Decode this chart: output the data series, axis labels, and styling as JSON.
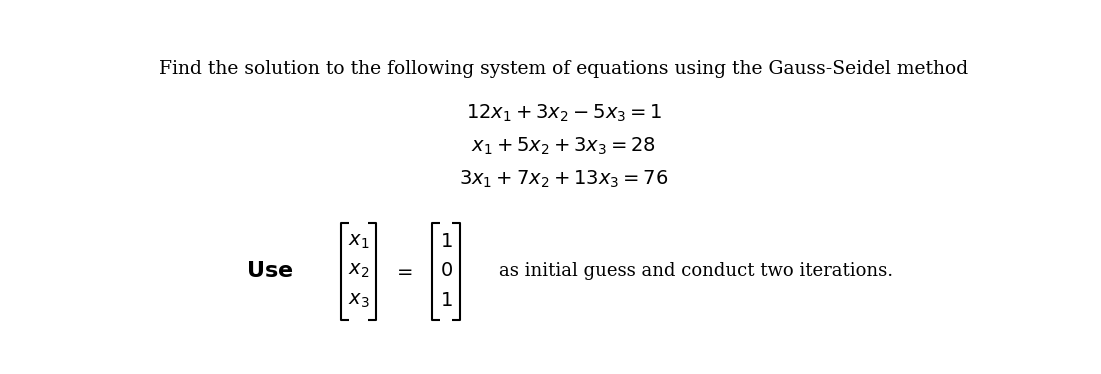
{
  "title": "Find the solution to the following system of equations using the Gauss-Seidel method",
  "eq1": "$12x_1 + 3x_2 - 5x_3 = 1$",
  "eq2": "$x_1 + 5x_2 + 3x_3 = 28$",
  "eq3": "$3x_1 + 7x_2 + 13x_3 = 76$",
  "vec_lhs": [
    "$x_1$",
    "$x_2$",
    "$x_3$"
  ],
  "vec_rhs": [
    "$1$",
    "$0$",
    "$1$"
  ],
  "tail_text": "as initial guess and conduct two iterations.",
  "bg_color": "#ffffff",
  "text_color": "#000000",
  "title_fontsize": 13.5,
  "eq_fontsize": 14,
  "label_fontsize": 14
}
